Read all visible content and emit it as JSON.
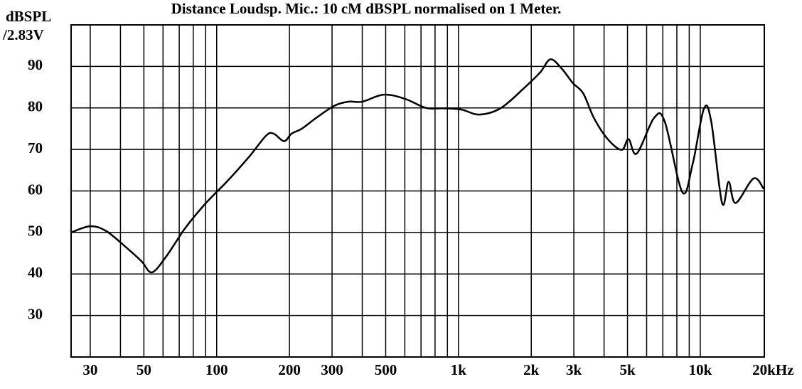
{
  "chart_data": {
    "type": "line",
    "title": "Distance Loudsp. Mic.: 10 cM dBSPL normalised on 1 Meter.",
    "ylabel": [
      "dBSPL",
      "/2.83V"
    ],
    "xscale": "log",
    "xlim": [
      25,
      18400
    ],
    "ylim": [
      20,
      100
    ],
    "yticks": [
      30,
      40,
      50,
      60,
      70,
      80,
      90
    ],
    "xticks": [
      30,
      50,
      100,
      200,
      300,
      500,
      {
        "value": 1000,
        "label": "1k"
      },
      {
        "value": 2000,
        "label": "2k"
      },
      {
        "value": 3000,
        "label": "3k"
      },
      {
        "value": 5000,
        "label": "5k"
      },
      {
        "value": 10000,
        "label": "10k"
      },
      {
        "value": 20000,
        "label": "20kHz"
      }
    ],
    "xminor": [
      40,
      60,
      70,
      80,
      90,
      400,
      600,
      700,
      800,
      900,
      4000,
      6000,
      7000,
      8000,
      9000
    ],
    "grid": true,
    "series": [
      {
        "color": "#000000",
        "x": [
          25,
          30,
          35,
          43,
          49,
          54,
          62,
          74,
          90,
          110,
          136,
          160,
          172,
          190,
          204,
          225,
          258,
          306,
          350,
          400,
          490,
          600,
          735,
          870,
          1030,
          1220,
          1500,
          1900,
          2180,
          2400,
          2670,
          2970,
          3280,
          3630,
          4140,
          4730,
          5050,
          5460,
          6440,
          7130,
          8430,
          9300,
          10350,
          11100,
          12300,
          13100,
          14000,
          16600,
          18300
        ],
        "values": [
          50,
          51.5,
          50.3,
          46,
          43,
          40.4,
          44.3,
          51,
          57,
          62.2,
          68.2,
          73.3,
          73.8,
          72,
          73.8,
          75,
          77.6,
          80.5,
          81.5,
          81.5,
          83.2,
          82.2,
          80,
          79.9,
          79.6,
          78.4,
          80,
          85.2,
          88.6,
          91.7,
          89.5,
          86,
          83.5,
          77.6,
          72.5,
          69.9,
          72.5,
          69,
          77.6,
          76.7,
          59.7,
          66.5,
          79.8,
          76.7,
          57.1,
          62.2,
          57.1,
          63,
          60.5
        ]
      }
    ]
  }
}
